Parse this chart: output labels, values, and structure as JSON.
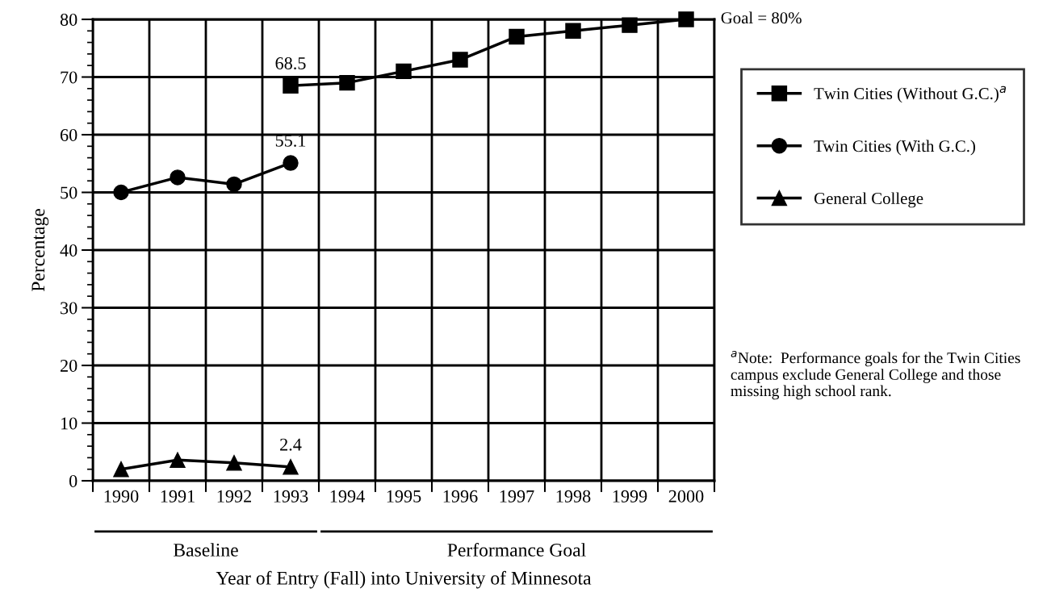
{
  "chart_data": {
    "type": "line",
    "xlabel": "Year of Entry (Fall) into University of Minnesota",
    "ylabel": "Percentage",
    "categories": [
      "1990",
      "1991",
      "1992",
      "1993",
      "1994",
      "1995",
      "1996",
      "1997",
      "1998",
      "1999",
      "2000"
    ],
    "series": [
      {
        "name": "Twin Cities (Without G.C.)$^{a}$",
        "color": "#000000",
        "marker": "square",
        "values": [
          null,
          null,
          null,
          68.5,
          69.0,
          71.0,
          73.0,
          77.0,
          78.0,
          79.0,
          80.0
        ]
      },
      {
        "name": "Twin Cities (With G.C.)",
        "color": "#000000",
        "marker": "circle",
        "values": [
          50.0,
          52.6,
          51.4,
          55.1,
          null,
          null,
          null,
          null,
          null,
          null,
          null
        ]
      },
      {
        "name": "General College",
        "color": "#000000",
        "marker": "triangle",
        "values": [
          2.0,
          3.6,
          3.1,
          2.4,
          null,
          null,
          null,
          null,
          null,
          null,
          null
        ]
      }
    ],
    "ylim": [
      0,
      80
    ],
    "yticks": [
      0,
      10,
      20,
      30,
      40,
      50,
      60,
      70,
      80
    ],
    "grid": true,
    "legend": "top right",
    "line_style": "solid",
    "annotations": [
      {
        "text": "68.5",
        "x": "1993",
        "y": 68.5
      },
      {
        "text": "55.1",
        "x": "1993",
        "y": 55.1
      },
      {
        "text": "2.4",
        "x": "1993",
        "y": 2.4
      },
      "Goal = 80%",
      "Baseline",
      "Performance Goal",
      "$^{a}$Note:  Performance goals for the Twin Cities campus exclude General College and those missing high school rank."
    ]
  }
}
